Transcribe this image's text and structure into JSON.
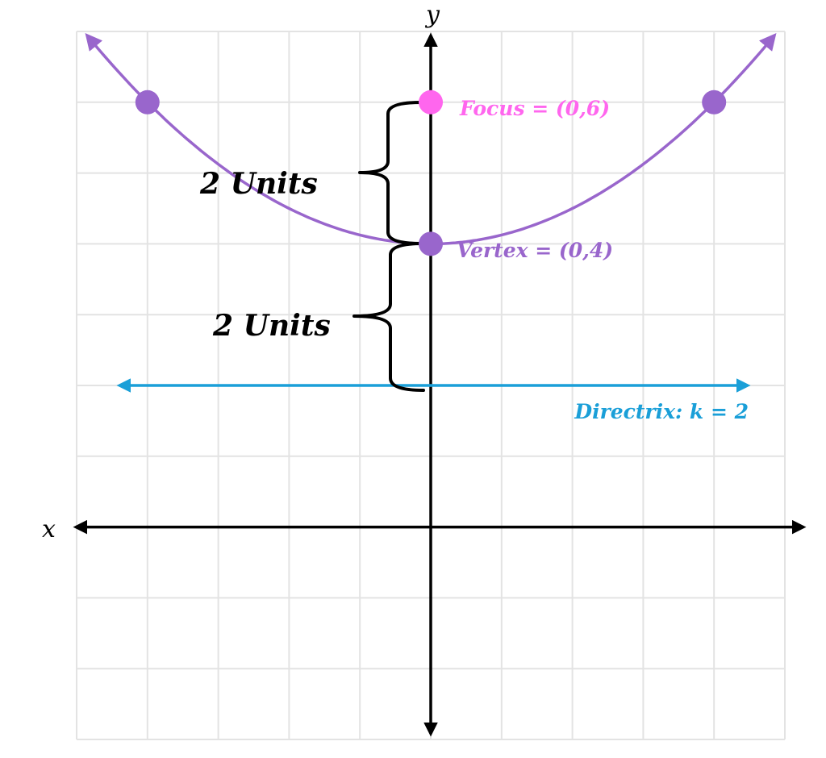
{
  "axes": {
    "x_label": "x",
    "y_label": "y"
  },
  "graph": {
    "x_range": [
      -5,
      5
    ],
    "y_range": [
      -3,
      7
    ],
    "parabola": {
      "vertex": [
        0,
        4
      ],
      "p": 2,
      "equation_form": "y = (x^2)/8 + 4",
      "marked_points": [
        [
          -4,
          6
        ],
        [
          4,
          6
        ]
      ],
      "color": "#9966cc"
    },
    "focus": {
      "point": [
        0,
        6
      ],
      "label": "Focus = (0,6)",
      "color": "#ff66ee"
    },
    "vertex": {
      "point": [
        0,
        4
      ],
      "label": "Vertex = (0,4)",
      "color": "#9966cc"
    },
    "directrix": {
      "k": 2,
      "label": "Directrix: k = 2",
      "color": "#1a9fd8"
    }
  },
  "annotations": {
    "upper_brace_label": "2 Units",
    "lower_brace_label": "2 Units"
  }
}
